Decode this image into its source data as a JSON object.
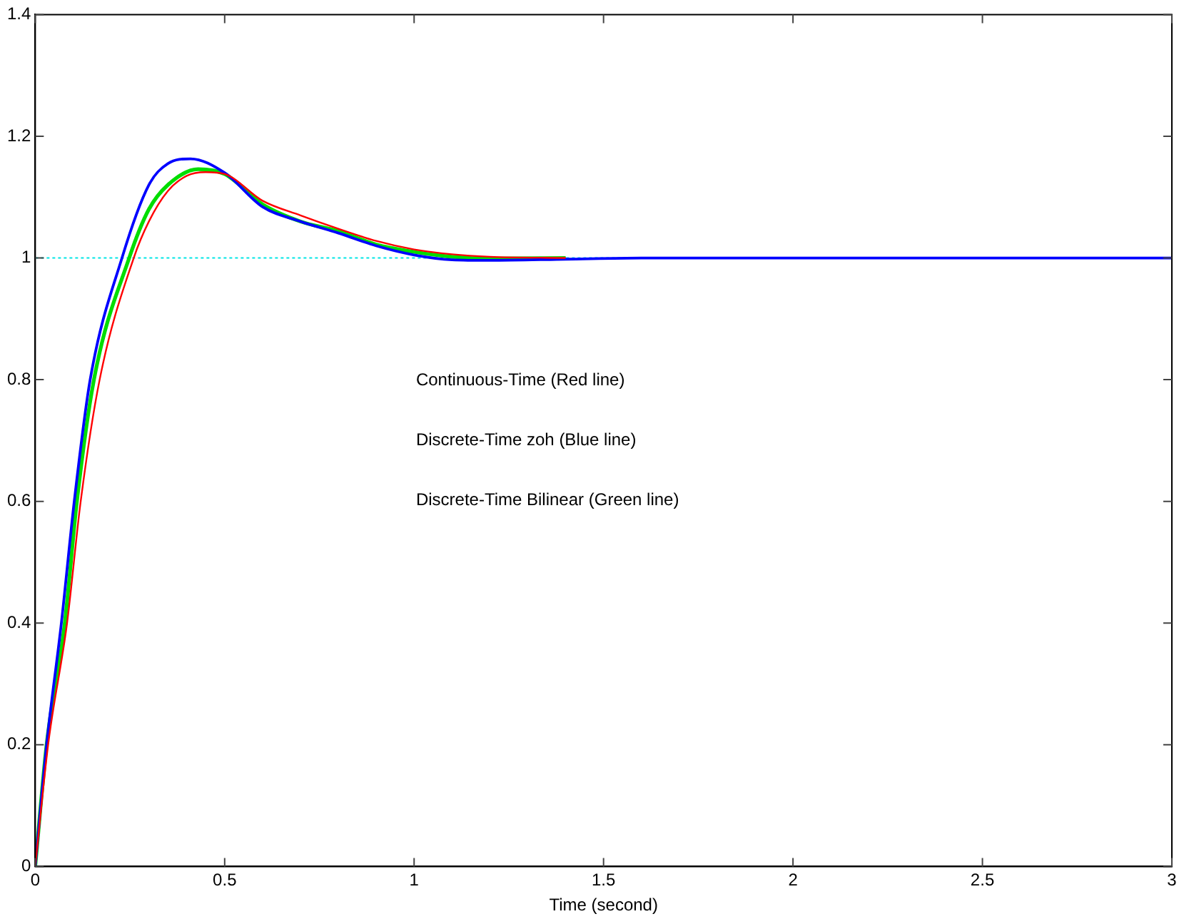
{
  "chart_data": {
    "type": "line",
    "xlabel": "Time (second)",
    "xlim": [
      0,
      3
    ],
    "xticks": [
      0,
      0.5,
      1,
      1.5,
      2,
      2.5,
      3
    ],
    "ylim": [
      0,
      1.4
    ],
    "yticks": [
      0,
      0.2,
      0.4,
      0.6,
      0.8,
      1,
      1.2,
      1.4
    ],
    "grid": false,
    "legend": false,
    "marker": "none",
    "line_style": "solid",
    "series": [
      {
        "color": "#ff0000",
        "x": [
          0,
          0.034,
          0.084,
          0.12,
          0.17,
          0.26,
          0.3,
          0.35,
          0.4,
          0.45,
          0.5,
          0.6,
          0.7,
          0.8,
          0.9,
          1.0,
          1.1,
          1.2,
          1.4
        ],
        "values": [
          0,
          0.2,
          0.4,
          0.6,
          0.8,
          1.0,
          1.06,
          1.11,
          1.135,
          1.141,
          1.138,
          1.094,
          1.07,
          1.048,
          1.028,
          1.014,
          1.006,
          1.002,
          1.0
        ]
      },
      {
        "color": "#0000ff",
        "x": [
          0,
          0.03,
          0.069,
          0.103,
          0.145,
          0.229,
          0.3,
          0.35,
          0.41,
          0.5,
          0.6,
          0.7,
          0.8,
          0.9,
          1.0,
          1.1,
          1.2,
          1.4,
          1.6,
          3
        ],
        "values": [
          0,
          0.2,
          0.4,
          0.6,
          0.8,
          1.0,
          1.12,
          1.155,
          1.163,
          1.14,
          1.084,
          1.06,
          1.041,
          1.02,
          1.005,
          0.997,
          0.996,
          0.998,
          1.0,
          1.0
        ]
      },
      {
        "color": "#00dd00",
        "x": [
          0,
          0.03,
          0.078,
          0.11,
          0.155,
          0.248,
          0.3,
          0.35,
          0.43,
          0.5,
          0.6,
          0.7,
          0.8,
          0.9,
          1.0,
          1.1,
          1.2,
          1.4
        ],
        "values": [
          0,
          0.2,
          0.4,
          0.6,
          0.8,
          1.0,
          1.08,
          1.12,
          1.146,
          1.138,
          1.088,
          1.06,
          1.044,
          1.022,
          1.01,
          1.002,
          0.999,
          1.0
        ]
      }
    ],
    "ref_lines": [
      {
        "axis": "y",
        "value": 1,
        "color": "#00e5e5",
        "line_style": "dotted"
      }
    ],
    "annotations": [
      "Continuous-Time (Red line)",
      "Discrete-Time zoh (Blue line)",
      "Discrete-Time Bilinear (Green line)"
    ]
  }
}
